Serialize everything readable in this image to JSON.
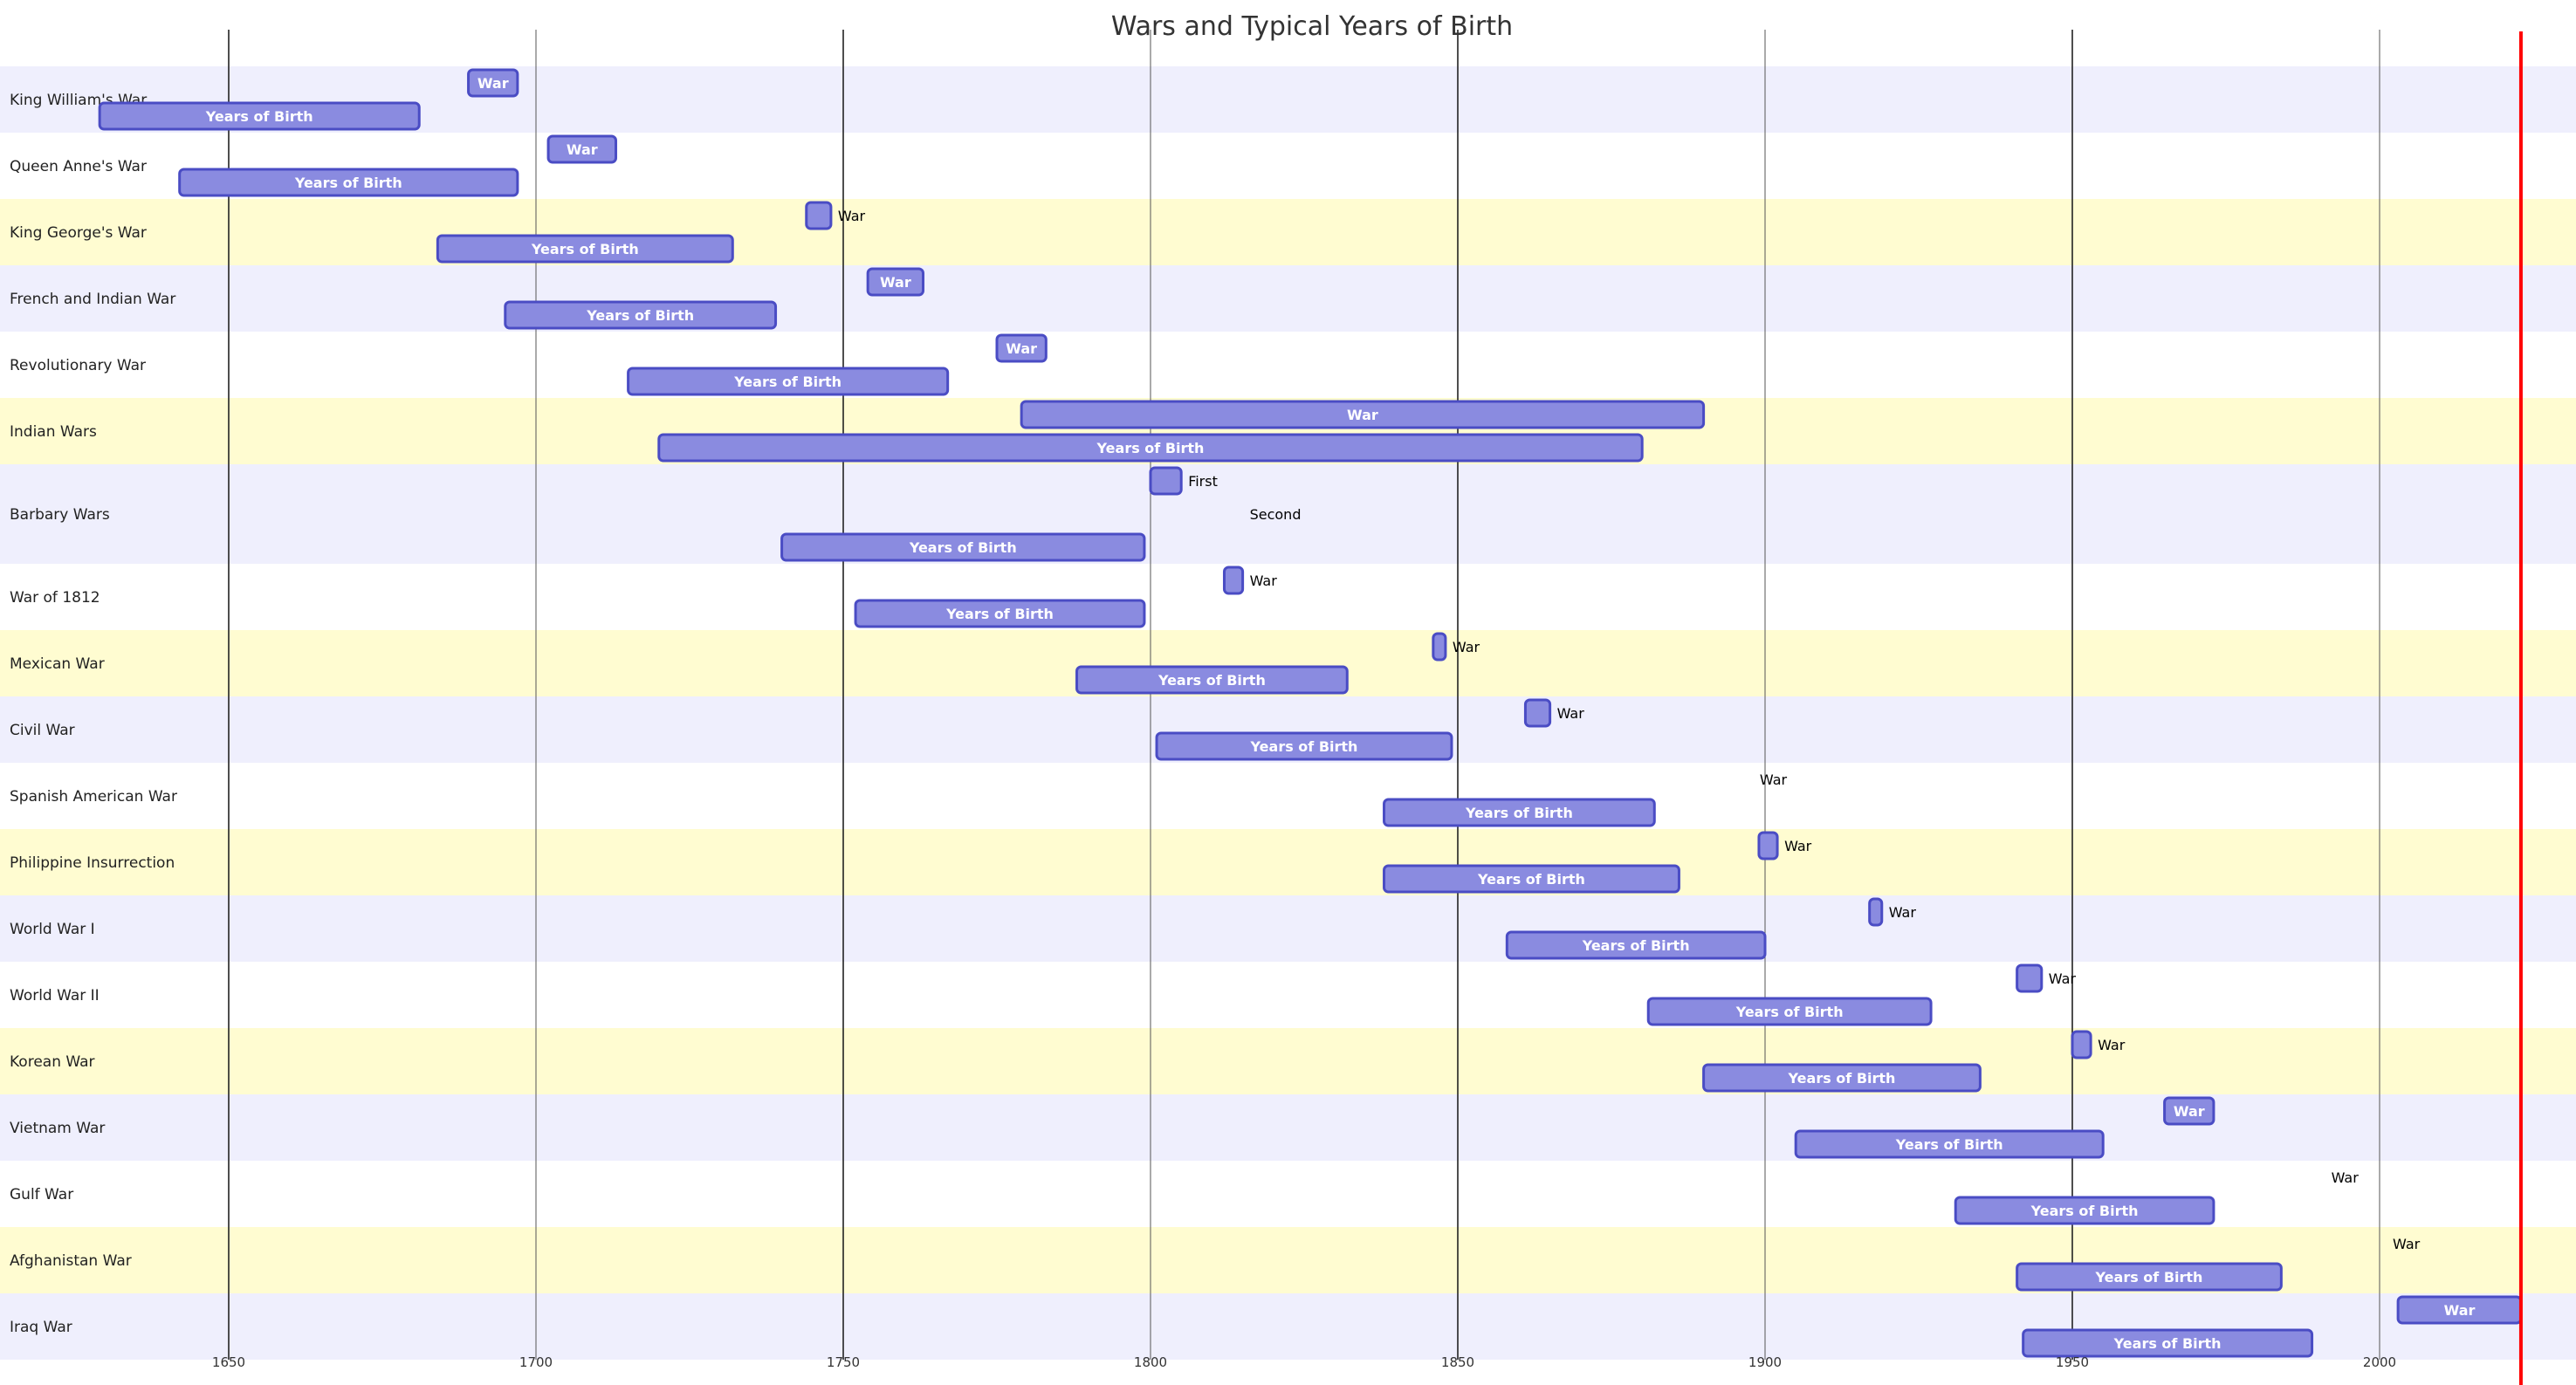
{
  "chart_data": {
    "type": "gantt",
    "title": "Wars and Typical Years of Birth",
    "x_axis": {
      "min": 1613,
      "max": 2030,
      "ticks": [
        1650,
        1700,
        1750,
        1800,
        1850,
        1900,
        1950,
        2000
      ],
      "grid": true
    },
    "today_marker": 2023,
    "band_colors": [
      "#efeffd",
      "#ffffff",
      "#fffcd1"
    ],
    "bar_fill": "#8a8be0",
    "bar_stroke": "#4a4cc4",
    "today_color": "#ff0000",
    "sections": [
      {
        "name": "King William's War",
        "tasks": [
          {
            "label": "War",
            "start": 1689,
            "end": 1697
          },
          {
            "label": "Years of Birth",
            "start": 1629,
            "end": 1681
          }
        ]
      },
      {
        "name": "Queen Anne's War",
        "tasks": [
          {
            "label": "War",
            "start": 1702,
            "end": 1713
          },
          {
            "label": "Years of Birth",
            "start": 1642,
            "end": 1697
          }
        ]
      },
      {
        "name": "King George's War",
        "tasks": [
          {
            "label": "War",
            "start": 1744,
            "end": 1748
          },
          {
            "label": "Years of Birth",
            "start": 1684,
            "end": 1732
          }
        ]
      },
      {
        "name": "French and Indian War",
        "tasks": [
          {
            "label": "War",
            "start": 1754,
            "end": 1763
          },
          {
            "label": "Years of Birth",
            "start": 1695,
            "end": 1739
          }
        ]
      },
      {
        "name": "Revolutionary War",
        "tasks": [
          {
            "label": "War",
            "start": 1775,
            "end": 1783
          },
          {
            "label": "Years of Birth",
            "start": 1715,
            "end": 1767
          }
        ]
      },
      {
        "name": "Indian Wars",
        "tasks": [
          {
            "label": "War",
            "start": 1779,
            "end": 1890
          },
          {
            "label": "Years of Birth",
            "start": 1720,
            "end": 1880
          }
        ]
      },
      {
        "name": "Barbary Wars",
        "tasks": [
          {
            "label": "First",
            "start": 1800,
            "end": 1805
          },
          {
            "label": "Second",
            "start": 1815,
            "end": 1815
          },
          {
            "label": "Years of Birth",
            "start": 1740,
            "end": 1799
          }
        ]
      },
      {
        "name": "War of 1812",
        "tasks": [
          {
            "label": "War",
            "start": 1812,
            "end": 1815
          },
          {
            "label": "Years of Birth",
            "start": 1752,
            "end": 1799
          }
        ]
      },
      {
        "name": "Mexican War",
        "tasks": [
          {
            "label": "War",
            "start": 1846,
            "end": 1848
          },
          {
            "label": "Years of Birth",
            "start": 1788,
            "end": 1832
          }
        ]
      },
      {
        "name": "Civil War",
        "tasks": [
          {
            "label": "War",
            "start": 1861,
            "end": 1865
          },
          {
            "label": "Years of Birth",
            "start": 1801,
            "end": 1849
          }
        ]
      },
      {
        "name": "Spanish American War",
        "tasks": [
          {
            "label": "War",
            "start": 1898,
            "end": 1898
          },
          {
            "label": "Years of Birth",
            "start": 1838,
            "end": 1882
          }
        ]
      },
      {
        "name": "Philippine Insurrection",
        "tasks": [
          {
            "label": "War",
            "start": 1899,
            "end": 1902
          },
          {
            "label": "Years of Birth",
            "start": 1838,
            "end": 1886
          }
        ]
      },
      {
        "name": "World War I",
        "tasks": [
          {
            "label": "War",
            "start": 1917,
            "end": 1919
          },
          {
            "label": "Years of Birth",
            "start": 1858,
            "end": 1900
          }
        ]
      },
      {
        "name": "World War II",
        "tasks": [
          {
            "label": "War",
            "start": 1941,
            "end": 1945
          },
          {
            "label": "Years of Birth",
            "start": 1881,
            "end": 1927
          }
        ]
      },
      {
        "name": "Korean War",
        "tasks": [
          {
            "label": "War",
            "start": 1950,
            "end": 1953
          },
          {
            "label": "Years of Birth",
            "start": 1890,
            "end": 1935
          }
        ]
      },
      {
        "name": "Vietnam War",
        "tasks": [
          {
            "label": "War",
            "start": 1965,
            "end": 1973
          },
          {
            "label": "Years of Birth",
            "start": 1905,
            "end": 1955
          }
        ]
      },
      {
        "name": "Gulf War",
        "tasks": [
          {
            "label": "War",
            "start": 1991,
            "end": 1991
          },
          {
            "label": "Years of Birth",
            "start": 1931,
            "end": 1973
          }
        ]
      },
      {
        "name": "Afghanistan War",
        "tasks": [
          {
            "label": "War",
            "start": 2001,
            "end": 2001
          },
          {
            "label": "Years of Birth",
            "start": 1941,
            "end": 1984
          }
        ]
      },
      {
        "name": "Iraq War",
        "tasks": [
          {
            "label": "War",
            "start": 2003,
            "end": 2023
          },
          {
            "label": "Years of Birth",
            "start": 1942,
            "end": 1989
          }
        ]
      }
    ]
  }
}
